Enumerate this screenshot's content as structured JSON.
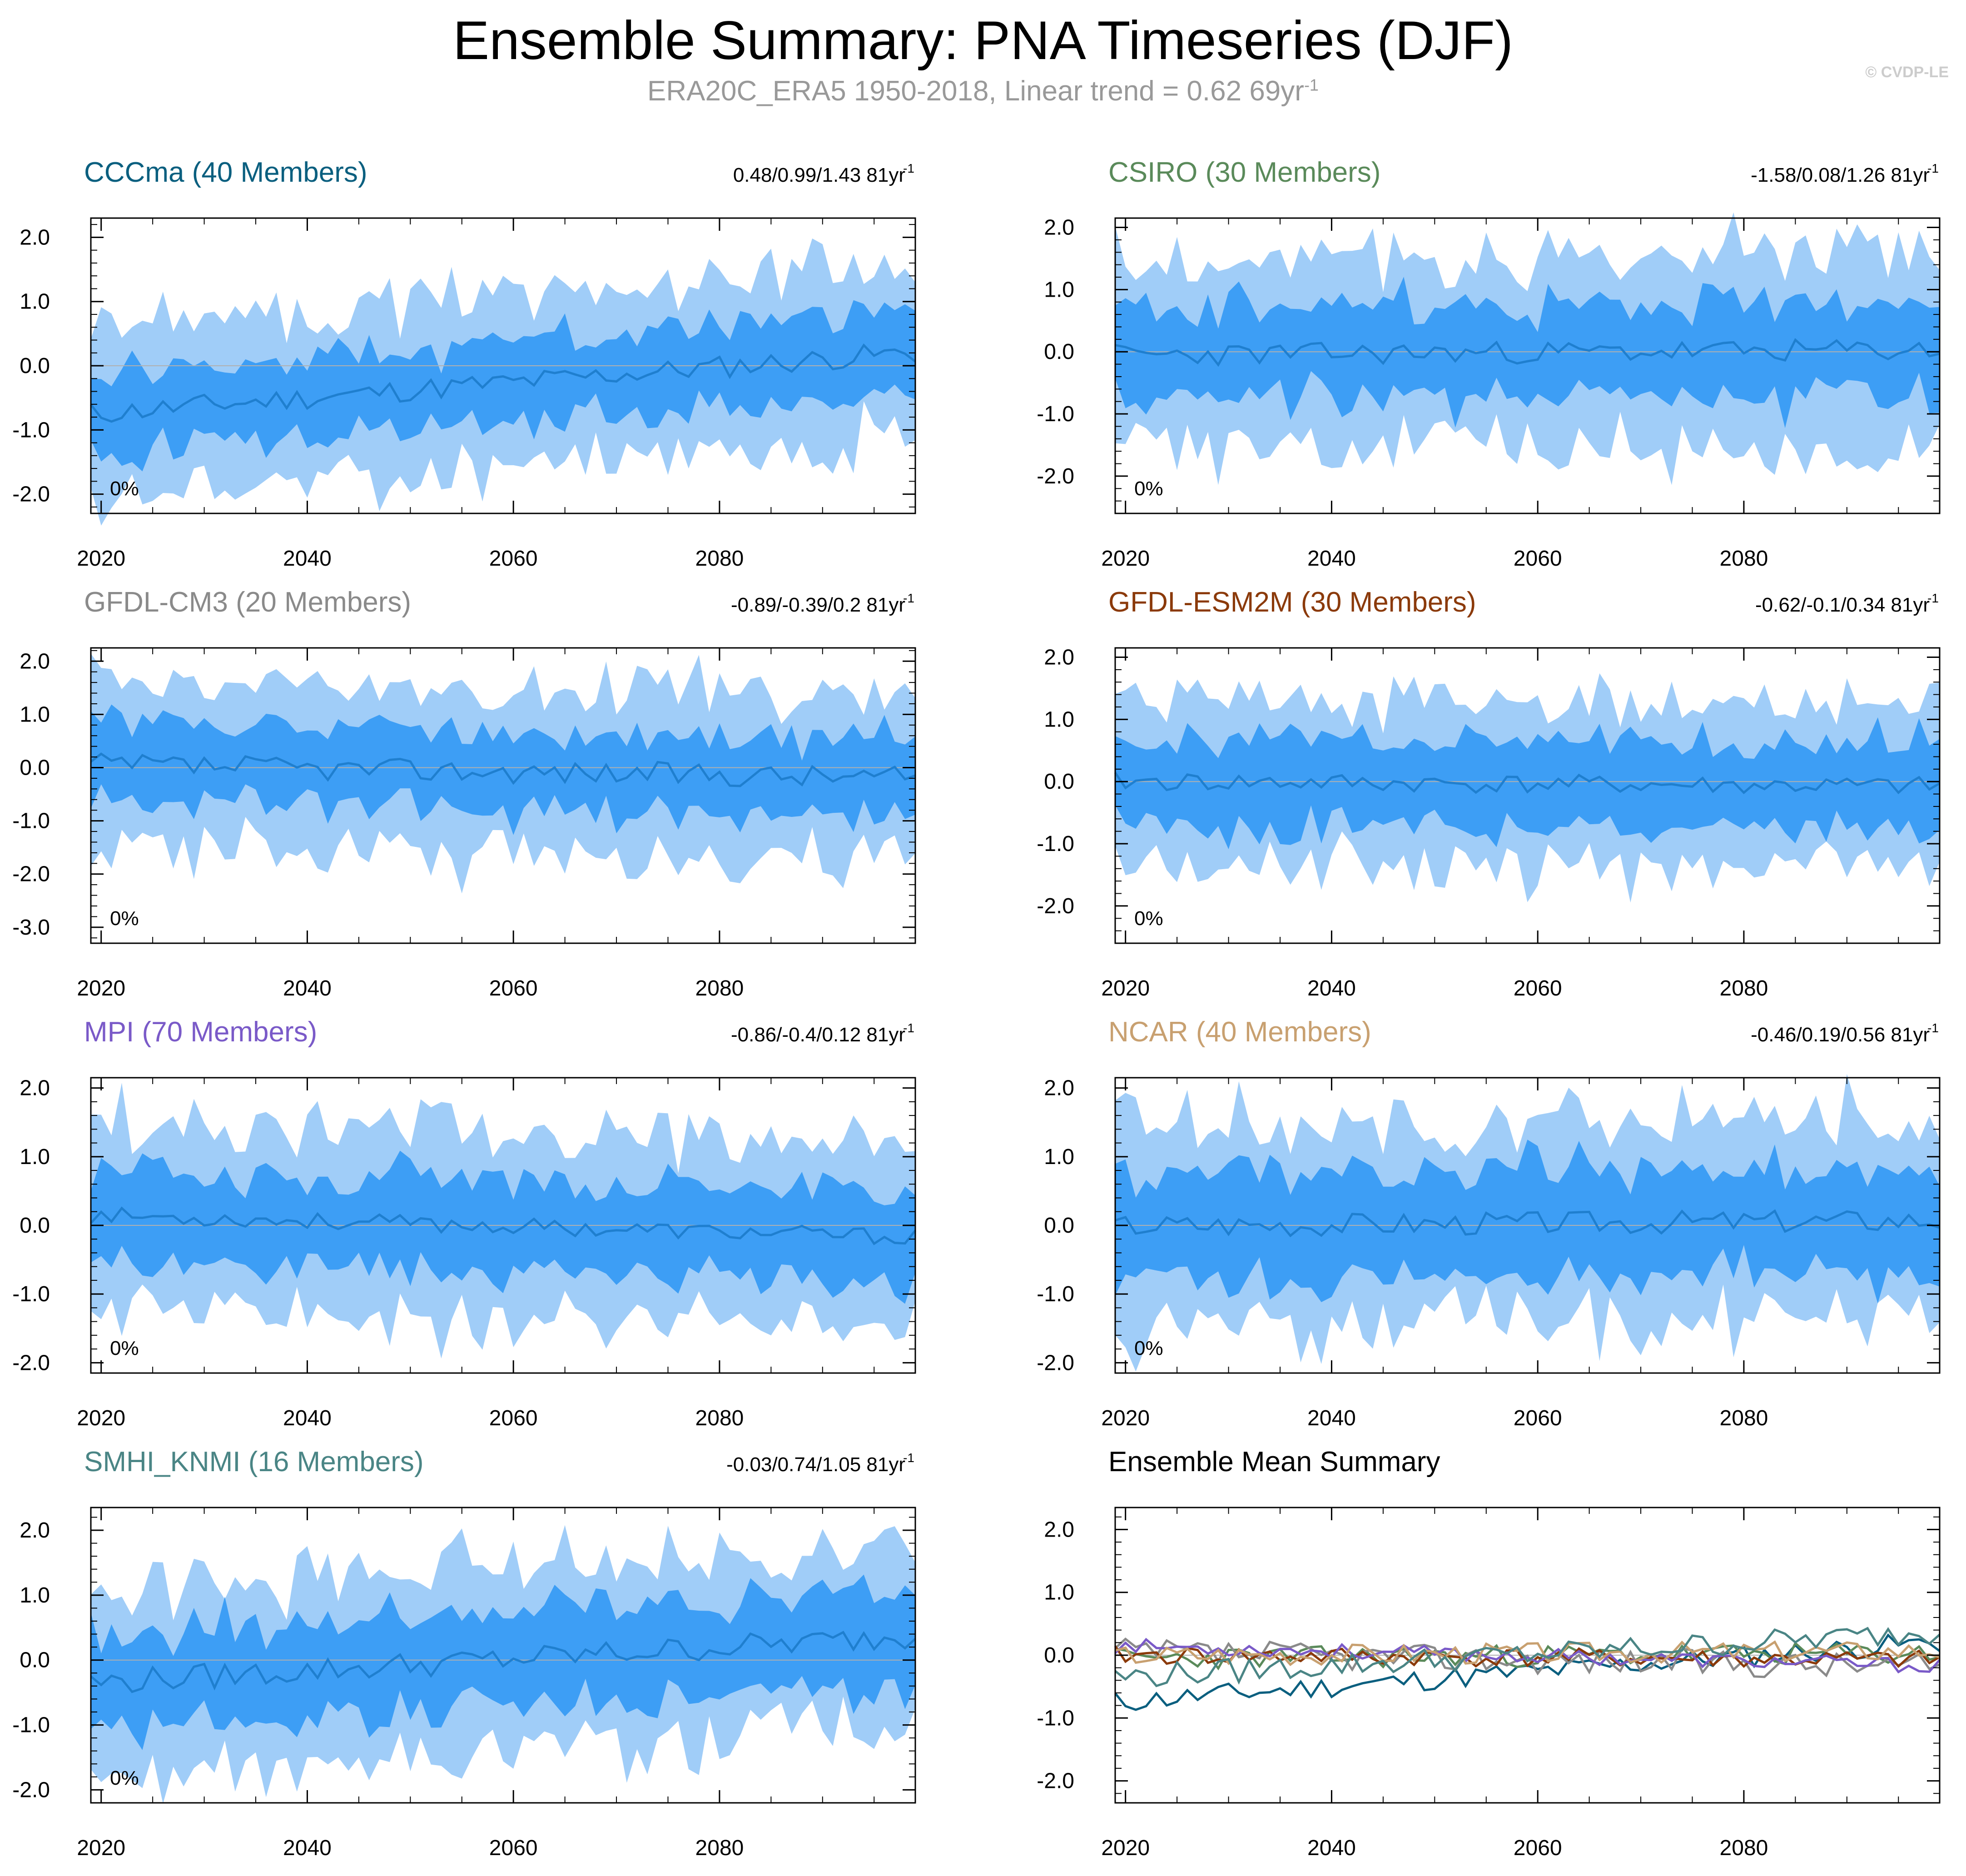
{
  "header": {
    "title": "Ensemble Summary: PNA Timeseries (DJF)",
    "subtitle_main": "ERA20C_ERA5 1950-2018, Linear trend = 0.62 69yr",
    "subtitle_sup": "-1",
    "watermark": "© CVDP-LE"
  },
  "colors": {
    "band_outer": "#a0cdf8",
    "band_inner": "#3d9ef5",
    "mean_line": "#1f7fcf",
    "zero_line": "#b0b0b0"
  },
  "chart_data": [
    {
      "type": "area",
      "title": "CCCma (40 Members)",
      "title_color": "#0a5f7f",
      "stat": "0.48/0.99/1.43 81yr",
      "stat_sup": "-1",
      "pct": "0%",
      "x_range": [
        2019,
        2099
      ],
      "x_ticks": [
        2020,
        2040,
        2060,
        2080
      ],
      "y_range": [
        -2.3,
        2.3
      ],
      "y_ticks": [
        2.0,
        1.0,
        0.0,
        -1.0,
        -2.0
      ],
      "y_tick_labels": [
        "2.0",
        "1.0",
        "0.0",
        "-1.0",
        "-2.0"
      ],
      "trend": 0.012,
      "start": -0.75,
      "seed": 11,
      "spread_inner": 0.62,
      "spread_outer": 1.32,
      "noise": 0.18
    },
    {
      "type": "area",
      "title": "CSIRO (30 Members)",
      "title_color": "#5a8a5a",
      "stat": "-1.58/0.08/1.26 81yr",
      "stat_sup": "-1",
      "pct": "0%",
      "x_range": [
        2019,
        2099
      ],
      "x_ticks": [
        2020,
        2040,
        2060,
        2080
      ],
      "y_range": [
        -2.6,
        2.15
      ],
      "y_ticks": [
        2.0,
        1.0,
        0.0,
        -1.0,
        -2.0
      ],
      "y_tick_labels": [
        "2.0",
        "1.0",
        "0.0",
        "-1.0",
        "-2.0"
      ],
      "trend": 0.001,
      "start": -0.05,
      "seed": 23,
      "spread_inner": 0.75,
      "spread_outer": 1.5,
      "noise": 0.18
    },
    {
      "type": "area",
      "title": "GFDL-CM3 (20 Members)",
      "title_color": "#8a8a8a",
      "stat": "-0.89/-0.39/0.2 81yr",
      "stat_sup": "-1",
      "pct": "0%",
      "x_range": [
        2019,
        2099
      ],
      "x_ticks": [
        2020,
        2040,
        2060,
        2080
      ],
      "y_range": [
        -3.3,
        2.25
      ],
      "y_ticks": [
        2.0,
        1.0,
        0.0,
        -1.0,
        -2.0,
        -3.0
      ],
      "y_tick_labels": [
        "2.0",
        "1.0",
        "0.0",
        "-1.0",
        "-2.0",
        "-3.0"
      ],
      "trend": -0.003,
      "start": 0.05,
      "seed": 37,
      "spread_inner": 0.72,
      "spread_outer": 1.55,
      "noise": 0.22
    },
    {
      "type": "area",
      "title": "GFDL-ESM2M (30 Members)",
      "title_color": "#8b3a0a",
      "stat": "-0.62/-0.1/0.34 81yr",
      "stat_sup": "-1",
      "pct": "0%",
      "x_range": [
        2019,
        2099
      ],
      "x_ticks": [
        2020,
        2040,
        2060,
        2080
      ],
      "y_range": [
        -2.6,
        2.15
      ],
      "y_ticks": [
        2.0,
        1.0,
        0.0,
        -1.0,
        -2.0
      ],
      "y_tick_labels": [
        "2.0",
        "1.0",
        "0.0",
        "-1.0",
        "-2.0"
      ],
      "trend": -0.001,
      "start": 0.0,
      "seed": 41,
      "spread_inner": 0.7,
      "spread_outer": 1.35,
      "noise": 0.15
    },
    {
      "type": "area",
      "title": "MPI (70 Members)",
      "title_color": "#7a5ac8",
      "stat": "-0.86/-0.4/0.12 81yr",
      "stat_sup": "-1",
      "pct": "0%",
      "x_range": [
        2019,
        2099
      ],
      "x_ticks": [
        2020,
        2040,
        2060,
        2080
      ],
      "y_range": [
        -2.15,
        2.15
      ],
      "y_ticks": [
        2.0,
        1.0,
        0.0,
        -1.0,
        -2.0
      ],
      "y_tick_labels": [
        "2.0",
        "1.0",
        "0.0",
        "-1.0",
        "-2.0"
      ],
      "trend": -0.004,
      "start": 0.15,
      "seed": 53,
      "spread_inner": 0.65,
      "spread_outer": 1.35,
      "noise": 0.12
    },
    {
      "type": "area",
      "title": "NCAR (40 Members)",
      "title_color": "#c8a070",
      "stat": "-0.46/0.19/0.56 81yr",
      "stat_sup": "-1",
      "pct": "0%",
      "x_range": [
        2019,
        2099
      ],
      "x_ticks": [
        2020,
        2040,
        2060,
        2080
      ],
      "y_range": [
        -2.15,
        2.15
      ],
      "y_ticks": [
        2.0,
        1.0,
        0.0,
        -1.0,
        -2.0
      ],
      "y_tick_labels": [
        "2.0",
        "1.0",
        "0.0",
        "-1.0",
        "-2.0"
      ],
      "trend": 0.001,
      "start": 0.0,
      "seed": 67,
      "spread_inner": 0.75,
      "spread_outer": 1.45,
      "noise": 0.17
    },
    {
      "type": "area",
      "title": "SMHI_KNMI (16 Members)",
      "title_color": "#4a8585",
      "stat": "-0.03/0.74/1.05 81yr",
      "stat_sup": "-1",
      "pct": "0%",
      "x_range": [
        2019,
        2099
      ],
      "x_ticks": [
        2020,
        2040,
        2060,
        2080
      ],
      "y_range": [
        -2.2,
        2.35
      ],
      "y_ticks": [
        2.0,
        1.0,
        0.0,
        -1.0,
        -2.0
      ],
      "y_tick_labels": [
        "2.0",
        "1.0",
        "0.0",
        "-1.0",
        "-2.0"
      ],
      "trend": 0.009,
      "start": -0.35,
      "seed": 79,
      "spread_inner": 0.7,
      "spread_outer": 1.4,
      "noise": 0.2
    },
    {
      "type": "line",
      "title": "Ensemble Mean Summary",
      "title_color": "#000000",
      "stat": "",
      "stat_sup": "",
      "pct": "",
      "x_range": [
        2019,
        2099
      ],
      "x_ticks": [
        2020,
        2040,
        2060,
        2080
      ],
      "y_range": [
        -2.35,
        2.35
      ],
      "y_ticks": [
        2.0,
        1.0,
        0.0,
        -1.0,
        -2.0
      ],
      "y_tick_labels": [
        "2.0",
        "1.0",
        "0.0",
        "-1.0",
        "-2.0"
      ],
      "series": [
        {
          "name": "CCCma",
          "color": "#0a5f7f",
          "trend": 0.012,
          "start": -0.75,
          "seed": 11,
          "noise": 0.18
        },
        {
          "name": "CSIRO",
          "color": "#5a8a5a",
          "trend": 0.001,
          "start": -0.05,
          "seed": 23,
          "noise": 0.18
        },
        {
          "name": "GFDL-CM3",
          "color": "#8a8a8a",
          "trend": -0.003,
          "start": 0.05,
          "seed": 37,
          "noise": 0.22
        },
        {
          "name": "GFDL-ESM2M",
          "color": "#8b3a0a",
          "trend": -0.001,
          "start": 0.0,
          "seed": 41,
          "noise": 0.15
        },
        {
          "name": "MPI",
          "color": "#7a5ac8",
          "trend": -0.004,
          "start": 0.15,
          "seed": 53,
          "noise": 0.12
        },
        {
          "name": "NCAR",
          "color": "#c8a070",
          "trend": 0.001,
          "start": 0.0,
          "seed": 67,
          "noise": 0.17
        },
        {
          "name": "SMHI_KNMI",
          "color": "#4a8585",
          "trend": 0.009,
          "start": -0.35,
          "seed": 79,
          "noise": 0.2
        }
      ]
    }
  ]
}
